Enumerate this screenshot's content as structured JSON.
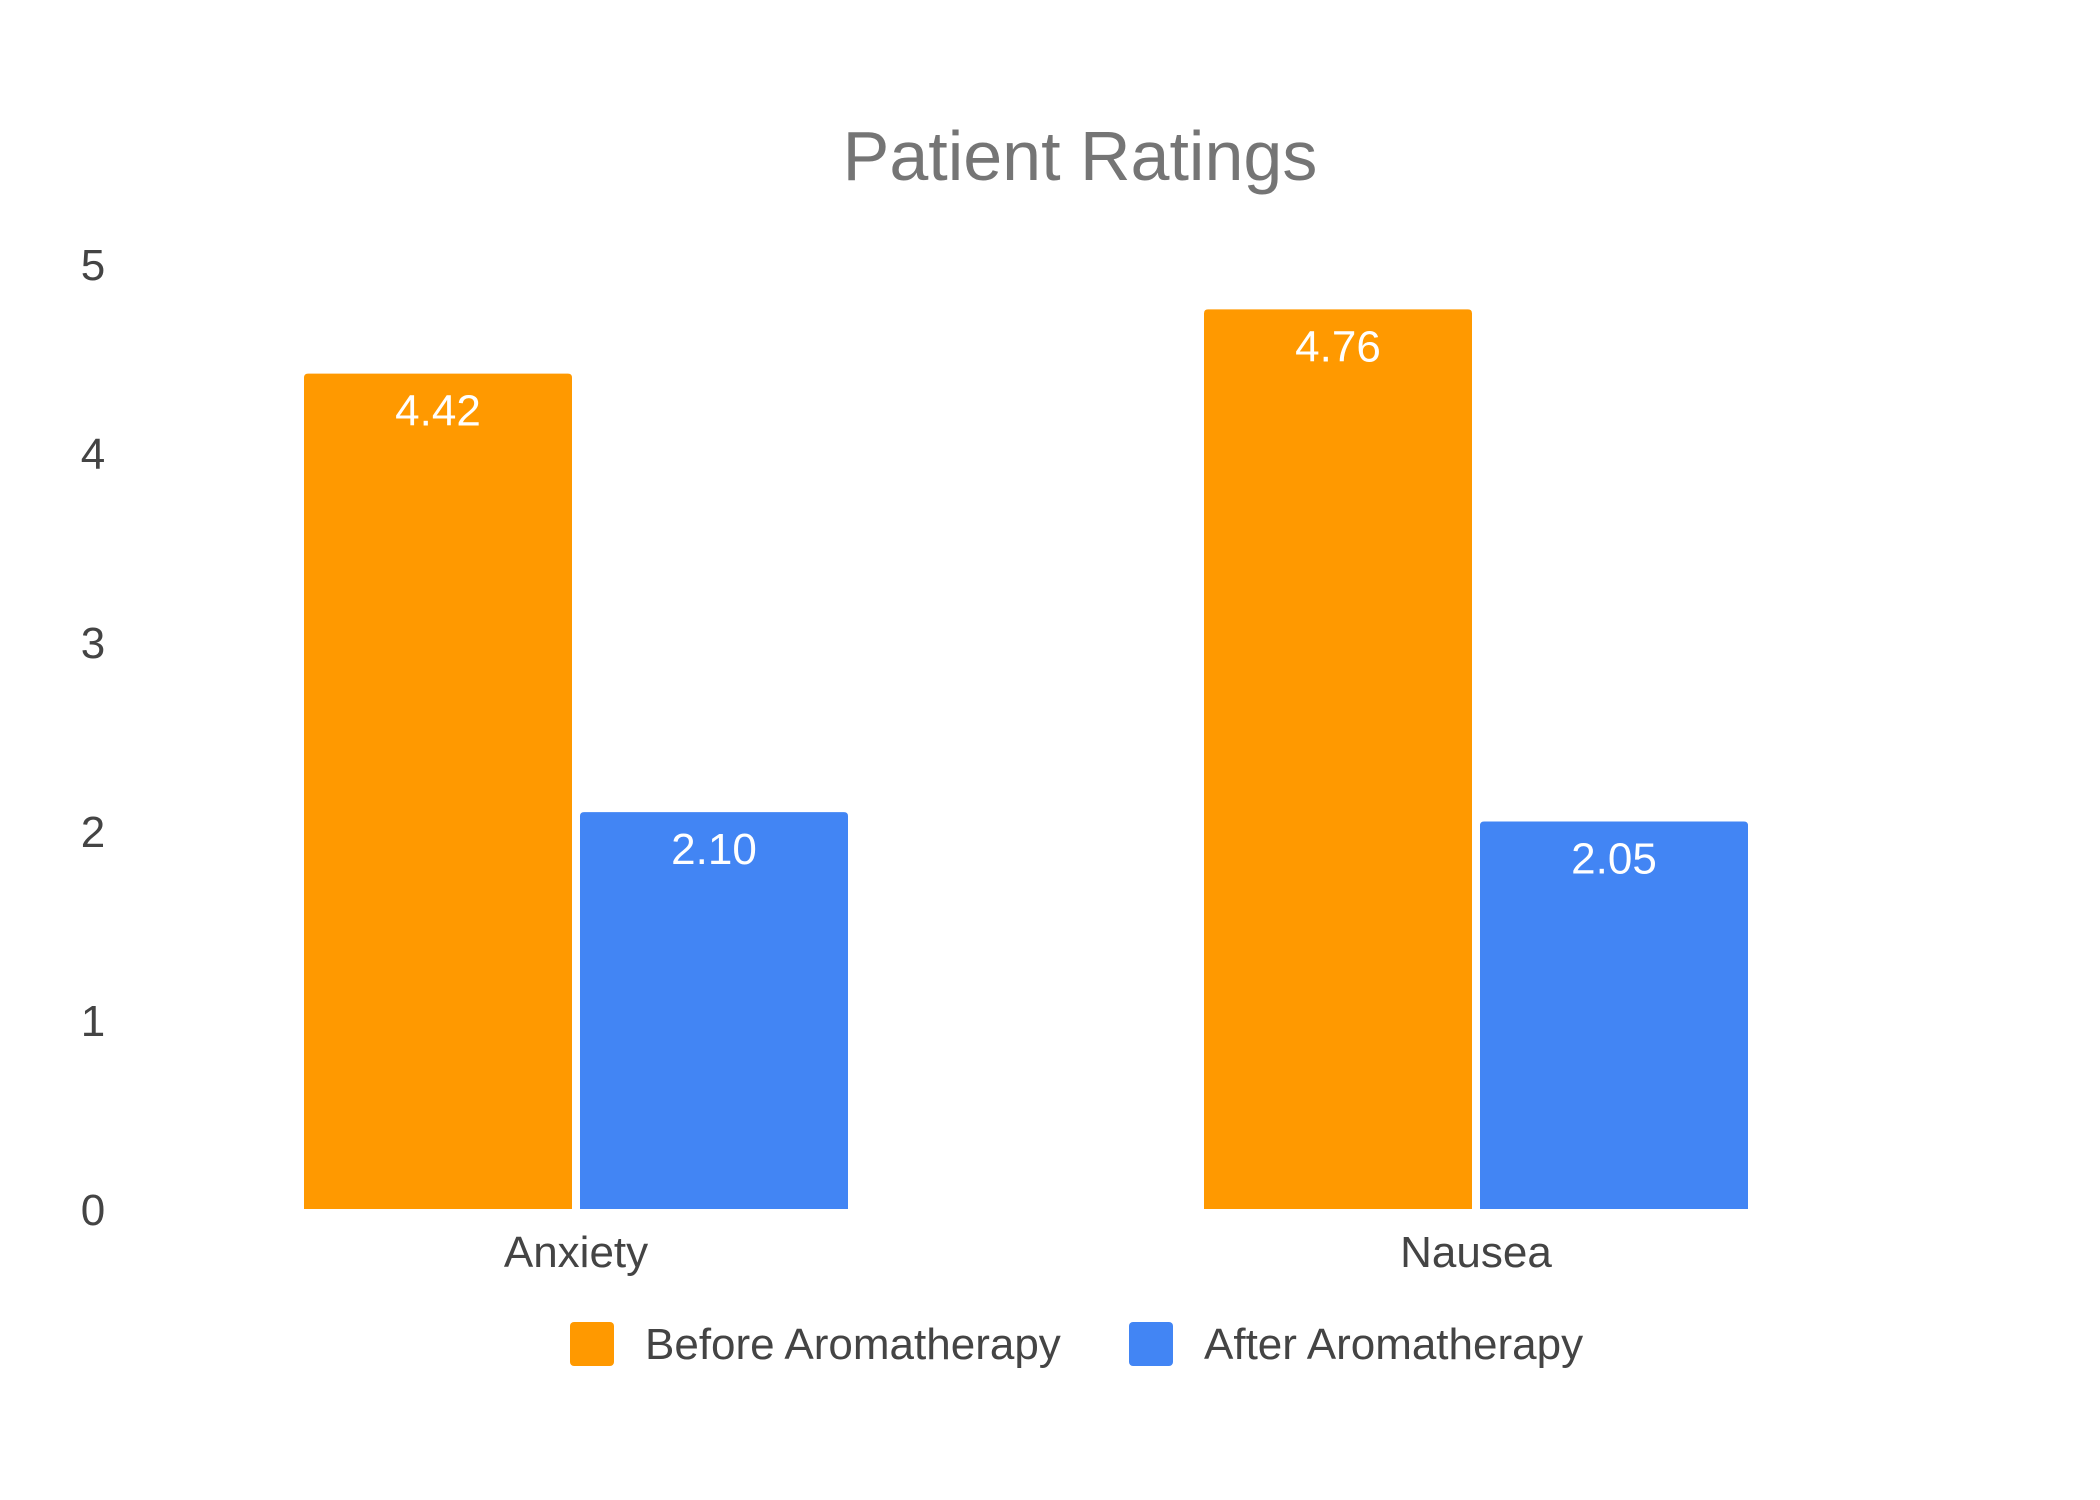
{
  "chart_data": {
    "type": "bar",
    "title": "Patient Ratings",
    "categories": [
      "Anxiety",
      "Nausea"
    ],
    "series": [
      {
        "name": "Before Aromatherapy",
        "values": [
          4.42,
          4.76
        ],
        "labels": [
          "4.42",
          "4.76"
        ],
        "color": "#FF9900"
      },
      {
        "name": "After Aromatherapy",
        "values": [
          2.1,
          2.05
        ],
        "labels": [
          "2.10",
          "2.05"
        ],
        "color": "#4285F4"
      }
    ],
    "ylim": [
      0,
      5
    ],
    "yticks": [
      "0",
      "1",
      "2",
      "3",
      "4",
      "5"
    ],
    "xlabel": "",
    "ylabel": "",
    "grid": false,
    "legend": "bottom"
  }
}
